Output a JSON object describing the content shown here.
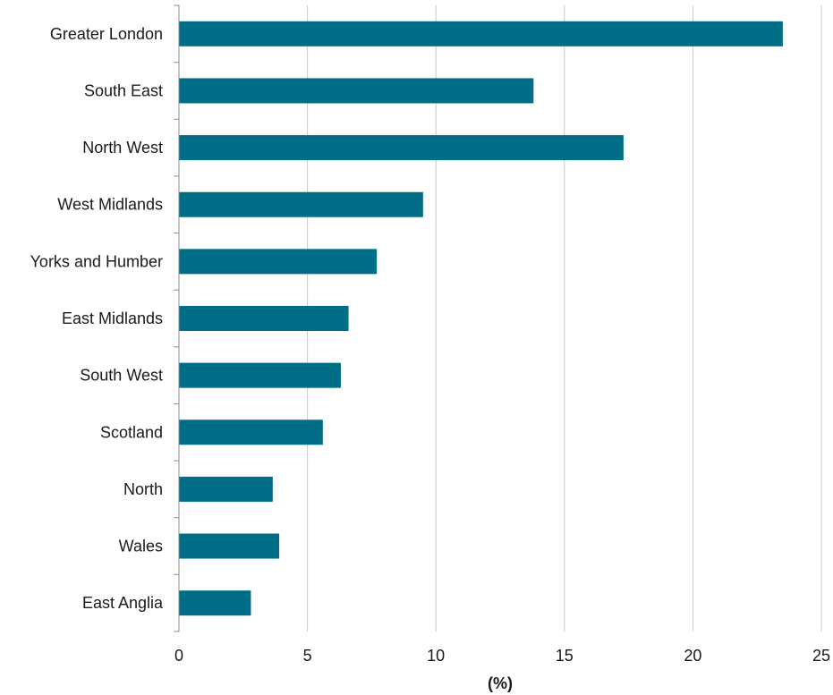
{
  "chart_data": {
    "type": "bar",
    "orientation": "horizontal",
    "categories": [
      "Greater London",
      "South East",
      "North West",
      "West Midlands",
      "Yorks and Humber",
      "East Midlands",
      "South West",
      "Scotland",
      "North",
      "Wales",
      "East Anglia"
    ],
    "values": [
      23.5,
      13.8,
      17.3,
      9.5,
      7.7,
      6.6,
      6.3,
      5.6,
      3.65,
      3.9,
      2.8
    ],
    "xlabel": "(%)",
    "ylabel": "",
    "xlim": [
      0,
      25
    ],
    "xticks": [
      "0",
      "5",
      "10",
      "15",
      "20",
      "25"
    ],
    "grid": true,
    "bar_color": "#006e87"
  }
}
